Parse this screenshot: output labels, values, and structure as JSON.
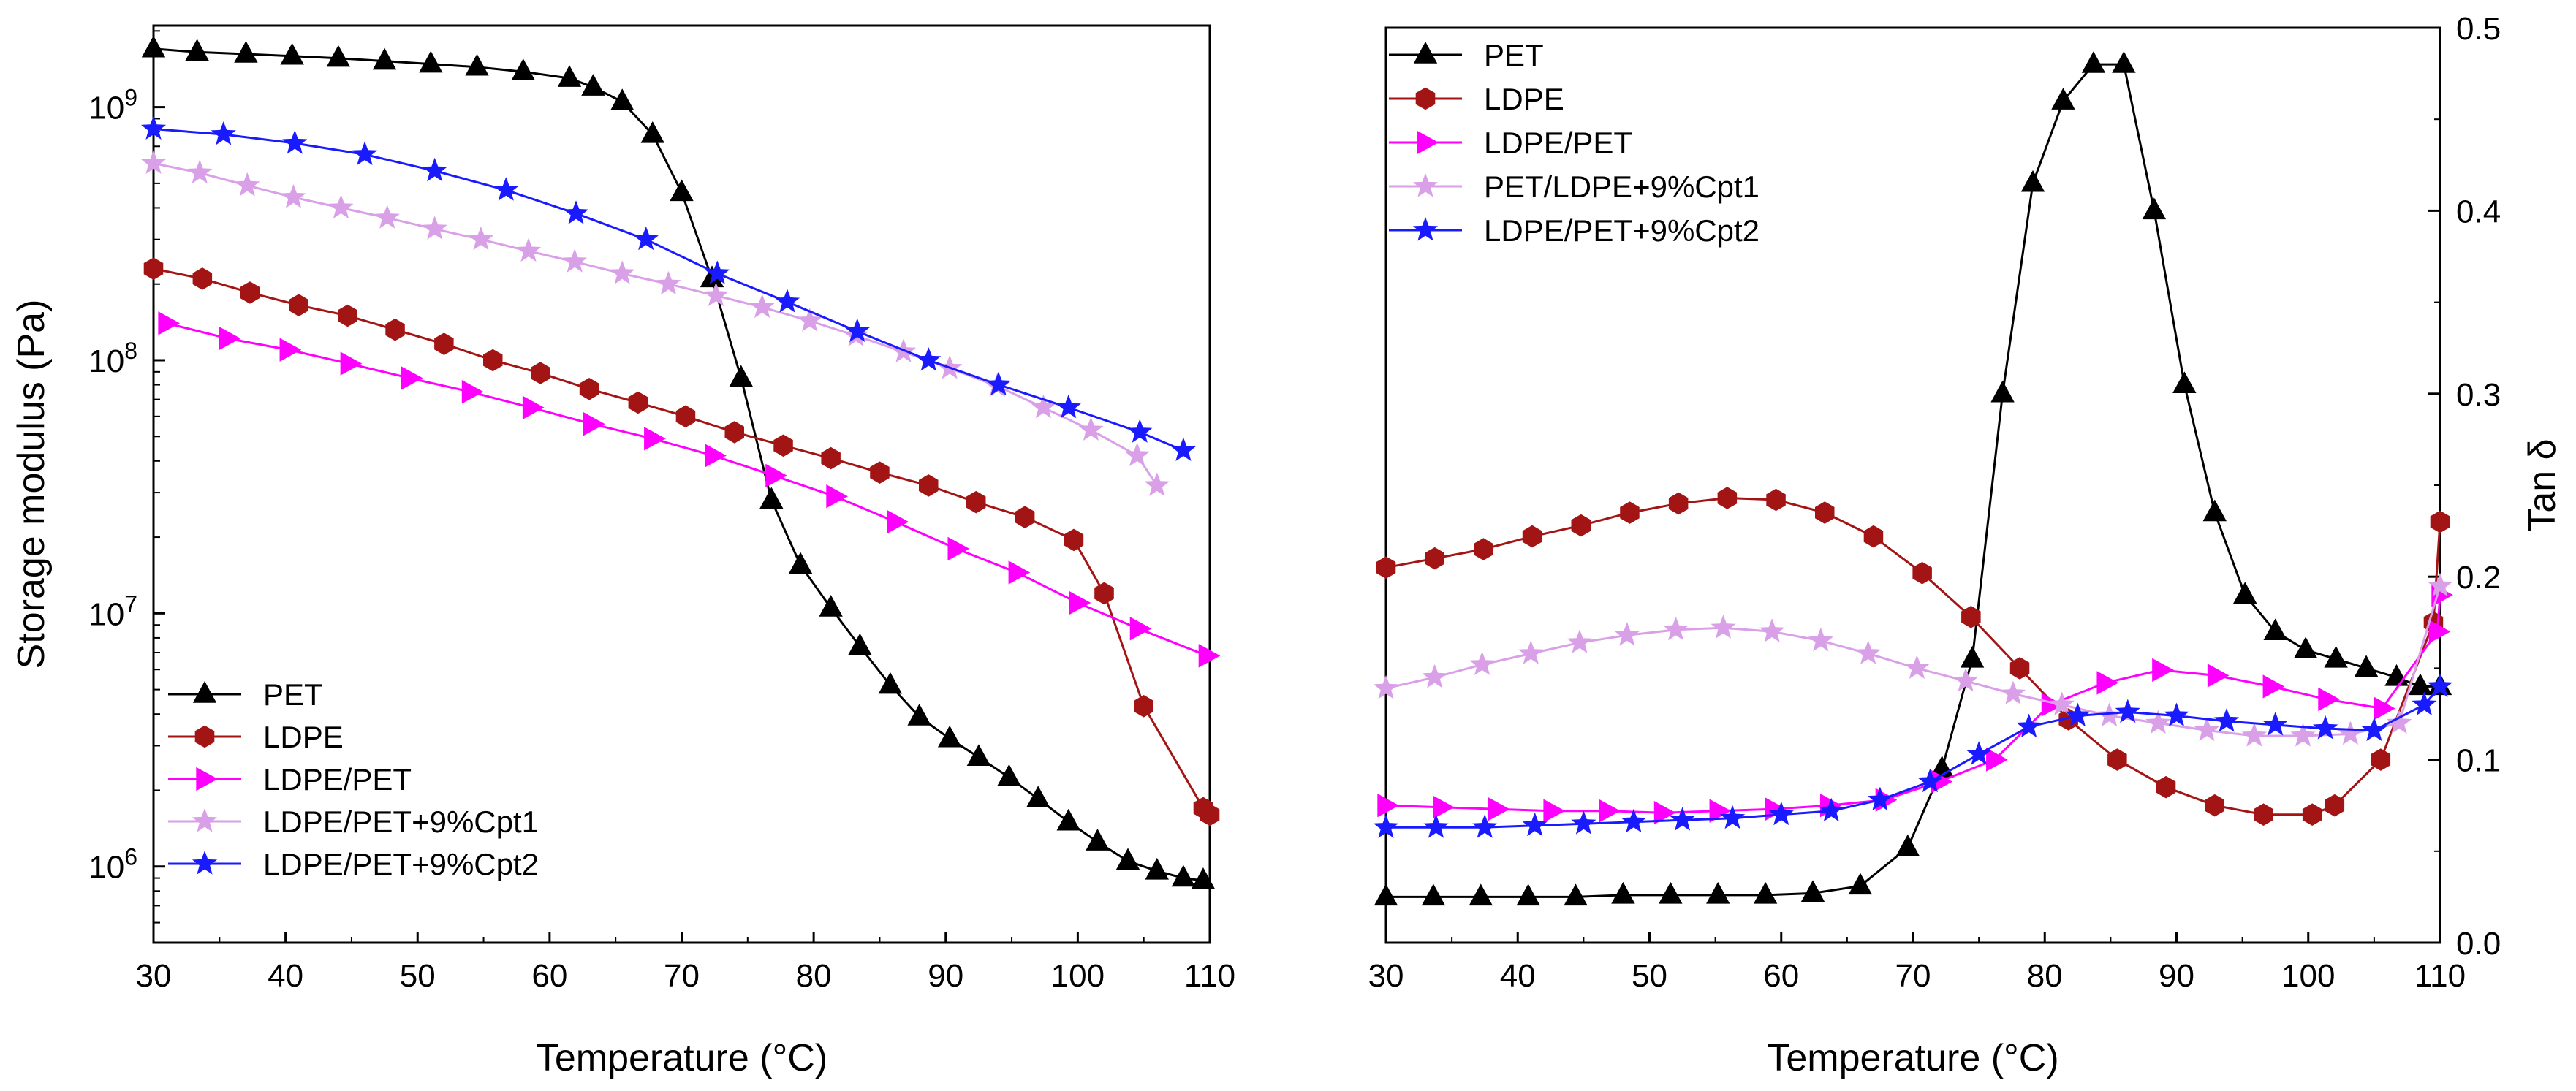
{
  "chart_data": [
    {
      "type": "line",
      "name": "storage-modulus",
      "xlabel": "Temperature (°C)",
      "ylabel": "Storage modulus (Pa)",
      "yscale": "log",
      "xlim": [
        30,
        110
      ],
      "ylim": [
        500000,
        2100000000
      ],
      "xticks": [
        30,
        40,
        50,
        60,
        70,
        80,
        90,
        100,
        110
      ],
      "yticks": [
        {
          "value": 1000000,
          "base": "10",
          "exp": "6"
        },
        {
          "value": 10000000,
          "base": "10",
          "exp": "7"
        },
        {
          "value": 100000000,
          "base": "10",
          "exp": "8"
        },
        {
          "value": 1000000000,
          "base": "10",
          "exp": "9"
        }
      ],
      "legend_position": "bottom-left",
      "series": [
        {
          "name": "PET",
          "color": "#000000",
          "marker": "triangle-up",
          "x": [
            30,
            33.3,
            37,
            40.5,
            44,
            47.5,
            51,
            54.5,
            58,
            61.5,
            63.3,
            65.5,
            67.8,
            70,
            72.3,
            74.5,
            76.8,
            79,
            81.3,
            83.5,
            85.8,
            88,
            90.3,
            92.5,
            94.8,
            97,
            99.3,
            101.5,
            103.8,
            106,
            108,
            109.5
          ],
          "y": [
            1700000000,
            1650000000,
            1620000000,
            1590000000,
            1560000000,
            1520000000,
            1480000000,
            1440000000,
            1380000000,
            1300000000,
            1200000000,
            1050000000,
            780000000,
            460000000,
            210000000,
            85000000,
            28000000,
            15500000,
            10500000,
            7400000,
            5200000,
            3900000,
            3200000,
            2700000,
            2250000,
            1850000,
            1500000,
            1250000,
            1050000,
            960000,
            900000,
            880000
          ]
        },
        {
          "name": "LDPE",
          "color": "#a31515",
          "marker": "hexagon",
          "x": [
            30,
            33.7,
            37.3,
            41,
            44.7,
            48.3,
            52,
            55.7,
            59.3,
            63,
            66.7,
            70.3,
            74,
            77.7,
            81.3,
            85,
            88.7,
            92.3,
            96,
            99.7,
            102,
            105,
            109.5,
            110
          ],
          "y": [
            230000000,
            210000000,
            185000000,
            165000000,
            150000000,
            132000000,
            116000000,
            100000000,
            89000000,
            77000000,
            68000000,
            60000000,
            52000000,
            46000000,
            41000000,
            36000000,
            32000000,
            27500000,
            24000000,
            19500000,
            12000000,
            4300000,
            1700000,
            1600000
          ]
        },
        {
          "name": "LDPE/PET",
          "color": "#ff00ff",
          "marker": "triangle-right",
          "x": [
            31,
            35.6,
            40.2,
            44.8,
            49.4,
            54,
            58.6,
            63.2,
            67.8,
            72.4,
            77,
            81.6,
            86.2,
            90.8,
            95.4,
            100,
            104.6,
            109.8
          ],
          "y": [
            140000000,
            122000000,
            110000000,
            97000000,
            85000000,
            75000000,
            65000000,
            56000000,
            49000000,
            42000000,
            35000000,
            29000000,
            23000000,
            18000000,
            14500000,
            11000000,
            8700000,
            6800000
          ]
        },
        {
          "name": "LDPE/PET+9%Cpt1",
          "color": "#d9a0e8",
          "marker": "star",
          "x": [
            30,
            33.5,
            37.1,
            40.6,
            44.2,
            47.7,
            51.3,
            54.8,
            58.4,
            61.9,
            65.5,
            69,
            72.6,
            76.1,
            79.7,
            83.2,
            86.8,
            90.3,
            93.9,
            97.4,
            101,
            104.5,
            106
          ],
          "y": [
            600000000,
            550000000,
            490000000,
            440000000,
            400000000,
            365000000,
            330000000,
            300000000,
            270000000,
            245000000,
            220000000,
            200000000,
            180000000,
            162000000,
            143000000,
            125000000,
            108000000,
            93000000,
            79000000,
            65000000,
            53000000,
            42000000,
            32000000
          ]
        },
        {
          "name": "LDPE/PET+9%Cpt2",
          "color": "#1a1aff",
          "marker": "star",
          "x": [
            30,
            35.3,
            40.7,
            46,
            51.3,
            56.7,
            62,
            67.3,
            72.7,
            78,
            83.3,
            88.7,
            94,
            99.3,
            104.7,
            108
          ],
          "y": [
            820000000,
            780000000,
            720000000,
            650000000,
            560000000,
            470000000,
            380000000,
            300000000,
            220000000,
            170000000,
            130000000,
            100000000,
            80000000,
            65000000,
            52000000,
            44000000
          ]
        }
      ]
    },
    {
      "type": "line",
      "name": "tan-delta",
      "xlabel": "Temperature (°C)",
      "ylabel": "Tan δ",
      "yaxis_side": "right",
      "xlim": [
        30,
        110
      ],
      "ylim": [
        0,
        0.5
      ],
      "xticks": [
        30,
        40,
        50,
        60,
        70,
        80,
        90,
        100,
        110
      ],
      "yticks": [
        0.0,
        0.1,
        0.2,
        0.3,
        0.4,
        0.5
      ],
      "ytick_labels": [
        "0.0",
        "0.1",
        "0.2",
        "0.3",
        "0.4",
        "0.5"
      ],
      "legend_position": "top-left",
      "series": [
        {
          "name": "PET",
          "color": "#000000",
          "marker": "triangle-up",
          "x": [
            30,
            33.6,
            37.2,
            40.8,
            44.4,
            48,
            51.6,
            55.2,
            58.8,
            62.4,
            66,
            69.6,
            72.2,
            74.5,
            76.8,
            79.1,
            81.4,
            83.7,
            86,
            88.3,
            90.6,
            92.9,
            95.2,
            97.5,
            99.8,
            102.1,
            104.4,
            106.7,
            108.5,
            110
          ],
          "y": [
            0.025,
            0.025,
            0.025,
            0.025,
            0.025,
            0.026,
            0.026,
            0.026,
            0.026,
            0.027,
            0.031,
            0.052,
            0.095,
            0.155,
            0.3,
            0.415,
            0.46,
            0.48,
            0.48,
            0.4,
            0.305,
            0.235,
            0.19,
            0.17,
            0.16,
            0.155,
            0.15,
            0.145,
            0.14,
            0.14
          ]
        },
        {
          "name": "LDPE",
          "color": "#a31515",
          "marker": "hexagon",
          "x": [
            30,
            33.7,
            37.4,
            41.1,
            44.8,
            48.5,
            52.2,
            55.9,
            59.6,
            63.3,
            67,
            70.7,
            74.4,
            78.1,
            81.8,
            85.5,
            89.2,
            92.9,
            96.6,
            100.3,
            102,
            105.5,
            109.5,
            110
          ],
          "y": [
            0.205,
            0.21,
            0.215,
            0.222,
            0.228,
            0.235,
            0.24,
            0.243,
            0.242,
            0.235,
            0.222,
            0.202,
            0.178,
            0.15,
            0.122,
            0.1,
            0.085,
            0.075,
            0.07,
            0.07,
            0.075,
            0.1,
            0.175,
            0.23
          ]
        },
        {
          "name": "LDPE/PET",
          "color": "#ff00ff",
          "marker": "triangle-right",
          "x": [
            30,
            34.2,
            38.4,
            42.6,
            46.8,
            51,
            55.2,
            59.4,
            63.6,
            67.8,
            72,
            76.2,
            80.4,
            84.6,
            88.8,
            93,
            97.2,
            101.4,
            105.6,
            109.8,
            110
          ],
          "y": [
            0.075,
            0.074,
            0.073,
            0.072,
            0.072,
            0.071,
            0.072,
            0.073,
            0.075,
            0.078,
            0.088,
            0.1,
            0.13,
            0.142,
            0.149,
            0.146,
            0.14,
            0.133,
            0.128,
            0.17,
            0.19
          ]
        },
        {
          "name": "PET/LDPE+9%Cpt1",
          "color": "#d9a0e8",
          "marker": "star",
          "x": [
            30,
            33.7,
            37.3,
            41,
            44.7,
            48.3,
            52,
            55.6,
            59.3,
            63,
            66.6,
            70.3,
            74,
            77.6,
            81.3,
            84.9,
            88.6,
            92.3,
            95.9,
            99.6,
            103.2,
            106.9,
            110
          ],
          "y": [
            0.139,
            0.145,
            0.152,
            0.158,
            0.164,
            0.168,
            0.171,
            0.172,
            0.17,
            0.165,
            0.158,
            0.15,
            0.143,
            0.136,
            0.13,
            0.124,
            0.12,
            0.116,
            0.113,
            0.113,
            0.114,
            0.12,
            0.195
          ]
        },
        {
          "name": "LDPE/PET+9%Cpt2",
          "color": "#1a1aff",
          "marker": "star",
          "x": [
            30,
            33.8,
            37.5,
            41.3,
            45,
            48.8,
            52.5,
            56.3,
            60,
            63.8,
            67.5,
            71.3,
            75,
            78.8,
            82.5,
            86.3,
            90,
            93.8,
            97.5,
            101.3,
            105,
            108.8,
            110
          ],
          "y": [
            0.063,
            0.063,
            0.063,
            0.064,
            0.065,
            0.066,
            0.067,
            0.068,
            0.07,
            0.072,
            0.078,
            0.088,
            0.103,
            0.118,
            0.124,
            0.126,
            0.124,
            0.121,
            0.119,
            0.117,
            0.116,
            0.13,
            0.14
          ]
        }
      ]
    }
  ]
}
